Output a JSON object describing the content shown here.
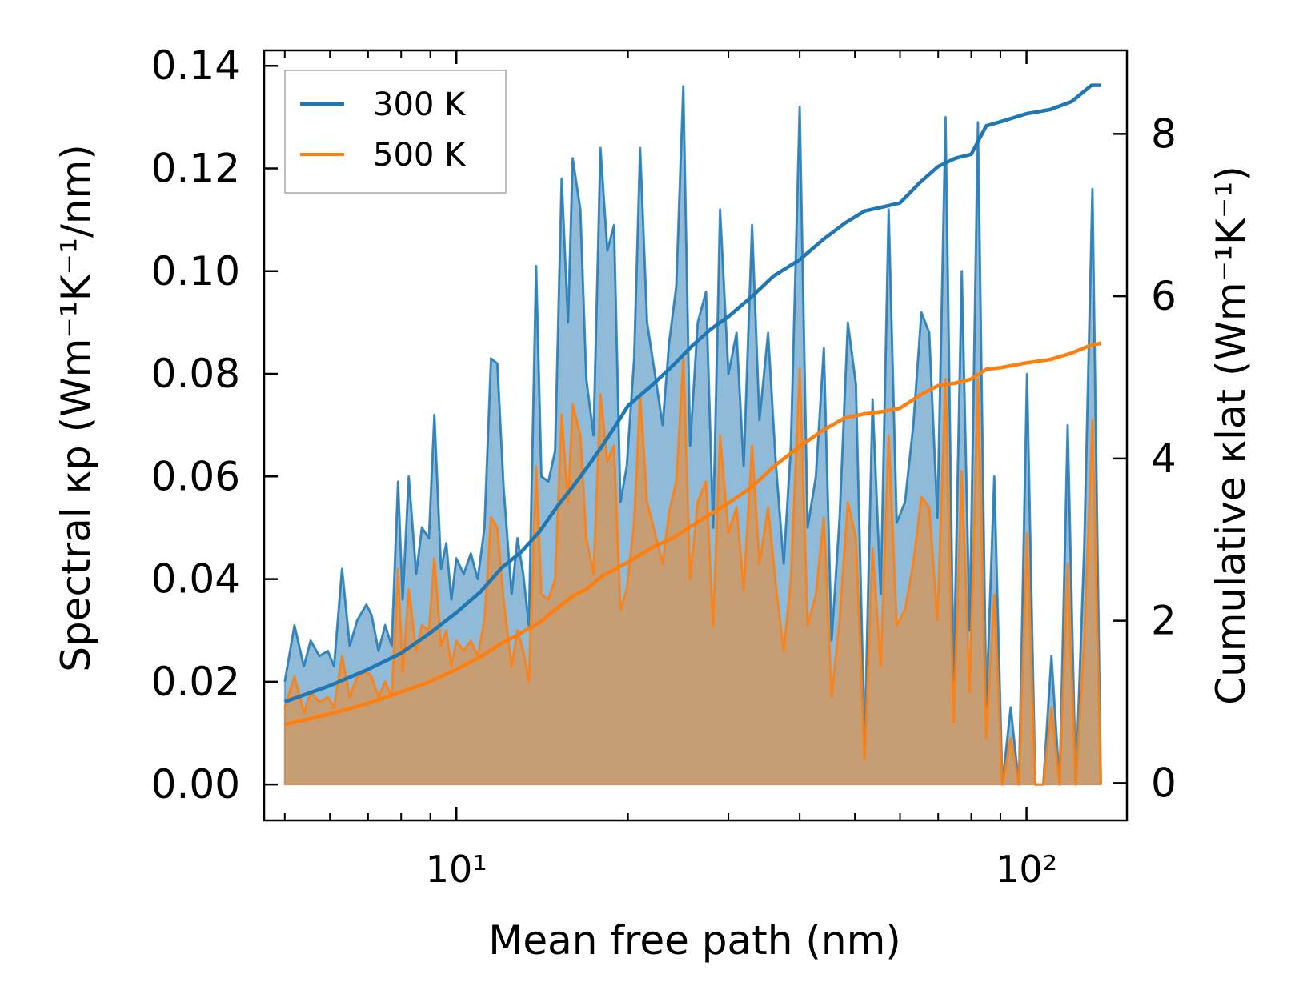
{
  "chart_data": {
    "type": "area",
    "xscale": "log",
    "xlabel": "Mean free path (nm)",
    "xlim": [
      4.6,
      150
    ],
    "ylabel_left": "Spectral κp (Wm⁻¹K⁻¹/nm)",
    "ylabel_right": "Cumulative κlat (Wm⁻¹K⁻¹)",
    "ylim_left": [
      -0.007,
      0.143
    ],
    "ylim_right": [
      -0.46,
      9.03
    ],
    "xticks": [
      {
        "value": 10,
        "label": "10¹"
      },
      {
        "value": 100,
        "label": "10²"
      }
    ],
    "yticks_left": [
      "0.00",
      "0.02",
      "0.04",
      "0.06",
      "0.08",
      "0.10",
      "0.12",
      "0.14"
    ],
    "yticks_right": [
      "0",
      "2",
      "4",
      "6",
      "8"
    ],
    "legend": {
      "placement": "top-left",
      "entries": [
        "300 K",
        "500 K"
      ]
    },
    "colors": {
      "300K": "#1f77b4",
      "500K": "#ff7f0e"
    },
    "spectral_300K": [
      [
        5.0,
        0.02
      ],
      [
        5.2,
        0.031
      ],
      [
        5.4,
        0.023
      ],
      [
        5.55,
        0.028
      ],
      [
        5.75,
        0.025
      ],
      [
        5.95,
        0.026
      ],
      [
        6.1,
        0.023
      ],
      [
        6.3,
        0.042
      ],
      [
        6.5,
        0.027
      ],
      [
        6.7,
        0.032
      ],
      [
        6.95,
        0.035
      ],
      [
        7.1,
        0.033
      ],
      [
        7.3,
        0.026
      ],
      [
        7.5,
        0.031
      ],
      [
        7.7,
        0.027
      ],
      [
        7.9,
        0.059
      ],
      [
        8.05,
        0.036
      ],
      [
        8.25,
        0.06
      ],
      [
        8.5,
        0.041
      ],
      [
        8.7,
        0.05
      ],
      [
        8.95,
        0.048
      ],
      [
        9.15,
        0.072
      ],
      [
        9.4,
        0.042
      ],
      [
        9.6,
        0.047
      ],
      [
        9.8,
        0.036
      ],
      [
        10.0,
        0.044
      ],
      [
        10.3,
        0.041
      ],
      [
        10.6,
        0.045
      ],
      [
        10.9,
        0.04
      ],
      [
        11.2,
        0.05
      ],
      [
        11.5,
        0.083
      ],
      [
        11.8,
        0.082
      ],
      [
        12.1,
        0.058
      ],
      [
        12.5,
        0.037
      ],
      [
        12.8,
        0.048
      ],
      [
        13.1,
        0.041
      ],
      [
        13.4,
        0.031
      ],
      [
        13.8,
        0.101
      ],
      [
        14.1,
        0.06
      ],
      [
        14.5,
        0.059
      ],
      [
        14.9,
        0.065
      ],
      [
        15.3,
        0.118
      ],
      [
        15.7,
        0.09
      ],
      [
        16.0,
        0.122
      ],
      [
        16.5,
        0.112
      ],
      [
        16.9,
        0.079
      ],
      [
        17.4,
        0.068
      ],
      [
        17.9,
        0.124
      ],
      [
        18.4,
        0.104
      ],
      [
        18.9,
        0.109
      ],
      [
        19.4,
        0.055
      ],
      [
        19.9,
        0.062
      ],
      [
        20.5,
        0.083
      ],
      [
        21.0,
        0.124
      ],
      [
        21.6,
        0.09
      ],
      [
        22.3,
        0.08
      ],
      [
        23.0,
        0.07
      ],
      [
        23.6,
        0.086
      ],
      [
        24.3,
        0.097
      ],
      [
        25.0,
        0.136
      ],
      [
        25.7,
        0.066
      ],
      [
        26.5,
        0.09
      ],
      [
        27.4,
        0.096
      ],
      [
        28.2,
        0.05
      ],
      [
        29.0,
        0.112
      ],
      [
        30.0,
        0.08
      ],
      [
        31.0,
        0.088
      ],
      [
        31.9,
        0.062
      ],
      [
        33.0,
        0.109
      ],
      [
        34.0,
        0.071
      ],
      [
        35.2,
        0.088
      ],
      [
        36.3,
        0.063
      ],
      [
        37.5,
        0.043
      ],
      [
        38.6,
        0.066
      ],
      [
        40.0,
        0.132
      ],
      [
        41.3,
        0.05
      ],
      [
        42.7,
        0.06
      ],
      [
        44.1,
        0.085
      ],
      [
        45.5,
        0.028
      ],
      [
        47.0,
        0.052
      ],
      [
        48.6,
        0.09
      ],
      [
        50.2,
        0.078
      ],
      [
        52.0,
        0.008
      ],
      [
        53.7,
        0.075
      ],
      [
        55.5,
        0.037
      ],
      [
        57.3,
        0.112
      ],
      [
        59.2,
        0.051
      ],
      [
        61.2,
        0.055
      ],
      [
        63.3,
        0.07
      ],
      [
        65.4,
        0.092
      ],
      [
        67.5,
        0.088
      ],
      [
        69.8,
        0.052
      ],
      [
        72.1,
        0.13
      ],
      [
        74.5,
        0.02
      ],
      [
        77.0,
        0.1
      ],
      [
        79.5,
        0.03
      ],
      [
        82.2,
        0.129
      ],
      [
        85.0,
        0.015
      ],
      [
        87.8,
        0.06
      ],
      [
        90.7,
        0.0
      ],
      [
        93.8,
        0.015
      ],
      [
        97.0,
        0.0
      ],
      [
        100.2,
        0.08
      ],
      [
        103.6,
        0.0
      ],
      [
        107.0,
        0.0
      ],
      [
        110.6,
        0.025
      ],
      [
        114.3,
        0.0
      ],
      [
        118.1,
        0.07
      ],
      [
        122.0,
        0.0
      ],
      [
        126.2,
        0.046
      ],
      [
        130.5,
        0.116
      ],
      [
        135.0,
        0.0
      ]
    ],
    "spectral_500K": [
      [
        5.0,
        0.015
      ],
      [
        5.2,
        0.021
      ],
      [
        5.4,
        0.014
      ],
      [
        5.55,
        0.018
      ],
      [
        5.75,
        0.016
      ],
      [
        5.95,
        0.017
      ],
      [
        6.1,
        0.015
      ],
      [
        6.3,
        0.025
      ],
      [
        6.5,
        0.017
      ],
      [
        6.7,
        0.021
      ],
      [
        6.95,
        0.022
      ],
      [
        7.1,
        0.021
      ],
      [
        7.3,
        0.017
      ],
      [
        7.5,
        0.02
      ],
      [
        7.7,
        0.017
      ],
      [
        7.9,
        0.042
      ],
      [
        8.05,
        0.022
      ],
      [
        8.25,
        0.038
      ],
      [
        8.5,
        0.026
      ],
      [
        8.7,
        0.031
      ],
      [
        8.95,
        0.03
      ],
      [
        9.15,
        0.044
      ],
      [
        9.4,
        0.027
      ],
      [
        9.6,
        0.03
      ],
      [
        9.8,
        0.023
      ],
      [
        10.0,
        0.028
      ],
      [
        10.3,
        0.026
      ],
      [
        10.6,
        0.028
      ],
      [
        10.9,
        0.025
      ],
      [
        11.2,
        0.032
      ],
      [
        11.5,
        0.052
      ],
      [
        11.8,
        0.05
      ],
      [
        12.1,
        0.036
      ],
      [
        12.5,
        0.023
      ],
      [
        12.8,
        0.03
      ],
      [
        13.1,
        0.026
      ],
      [
        13.4,
        0.02
      ],
      [
        13.8,
        0.062
      ],
      [
        14.1,
        0.037
      ],
      [
        14.5,
        0.036
      ],
      [
        14.9,
        0.04
      ],
      [
        15.3,
        0.072
      ],
      [
        15.7,
        0.055
      ],
      [
        16.0,
        0.074
      ],
      [
        16.5,
        0.068
      ],
      [
        16.9,
        0.048
      ],
      [
        17.4,
        0.041
      ],
      [
        17.9,
        0.076
      ],
      [
        18.4,
        0.063
      ],
      [
        18.9,
        0.066
      ],
      [
        19.4,
        0.034
      ],
      [
        19.9,
        0.038
      ],
      [
        20.5,
        0.051
      ],
      [
        21.0,
        0.076
      ],
      [
        21.6,
        0.055
      ],
      [
        22.3,
        0.049
      ],
      [
        23.0,
        0.043
      ],
      [
        23.6,
        0.053
      ],
      [
        24.3,
        0.059
      ],
      [
        25.0,
        0.083
      ],
      [
        25.7,
        0.04
      ],
      [
        26.5,
        0.055
      ],
      [
        27.4,
        0.059
      ],
      [
        28.2,
        0.031
      ],
      [
        29.0,
        0.068
      ],
      [
        30.0,
        0.049
      ],
      [
        31.0,
        0.054
      ],
      [
        31.9,
        0.038
      ],
      [
        33.0,
        0.066
      ],
      [
        34.0,
        0.043
      ],
      [
        35.2,
        0.054
      ],
      [
        36.3,
        0.039
      ],
      [
        37.5,
        0.026
      ],
      [
        38.6,
        0.04
      ],
      [
        40.0,
        0.081
      ],
      [
        41.3,
        0.031
      ],
      [
        42.7,
        0.037
      ],
      [
        44.1,
        0.052
      ],
      [
        45.5,
        0.017
      ],
      [
        47.0,
        0.032
      ],
      [
        48.6,
        0.055
      ],
      [
        50.2,
        0.048
      ],
      [
        52.0,
        0.005
      ],
      [
        53.7,
        0.046
      ],
      [
        55.5,
        0.023
      ],
      [
        57.3,
        0.068
      ],
      [
        59.2,
        0.031
      ],
      [
        61.2,
        0.034
      ],
      [
        63.3,
        0.043
      ],
      [
        65.4,
        0.056
      ],
      [
        67.5,
        0.054
      ],
      [
        69.8,
        0.032
      ],
      [
        72.1,
        0.079
      ],
      [
        74.5,
        0.012
      ],
      [
        77.0,
        0.061
      ],
      [
        79.5,
        0.018
      ],
      [
        82.2,
        0.079
      ],
      [
        85.0,
        0.009
      ],
      [
        87.8,
        0.037
      ],
      [
        90.7,
        0.0
      ],
      [
        93.8,
        0.009
      ],
      [
        97.0,
        0.0
      ],
      [
        100.2,
        0.049
      ],
      [
        103.6,
        0.0
      ],
      [
        107.0,
        0.0
      ],
      [
        110.6,
        0.015
      ],
      [
        114.3,
        0.0
      ],
      [
        118.1,
        0.043
      ],
      [
        122.0,
        0.0
      ],
      [
        126.2,
        0.028
      ],
      [
        130.5,
        0.071
      ],
      [
        135.0,
        0.0
      ]
    ],
    "cumulative_300K": [
      [
        5.0,
        1.0
      ],
      [
        6.0,
        1.2
      ],
      [
        7.0,
        1.4
      ],
      [
        8.0,
        1.6
      ],
      [
        9.0,
        1.85
      ],
      [
        10.0,
        2.1
      ],
      [
        11.0,
        2.35
      ],
      [
        12.0,
        2.65
      ],
      [
        13.0,
        2.85
      ],
      [
        14.0,
        3.1
      ],
      [
        15.0,
        3.4
      ],
      [
        16.0,
        3.65
      ],
      [
        17.0,
        3.9
      ],
      [
        18.0,
        4.15
      ],
      [
        19.0,
        4.4
      ],
      [
        20.0,
        4.65
      ],
      [
        22.0,
        4.9
      ],
      [
        24.0,
        5.15
      ],
      [
        26.0,
        5.4
      ],
      [
        28.0,
        5.6
      ],
      [
        30.0,
        5.75
      ],
      [
        33.0,
        6.0
      ],
      [
        36.0,
        6.25
      ],
      [
        40.0,
        6.45
      ],
      [
        44.0,
        6.7
      ],
      [
        48.0,
        6.9
      ],
      [
        52.0,
        7.05
      ],
      [
        56.0,
        7.1
      ],
      [
        60.0,
        7.15
      ],
      [
        65.0,
        7.4
      ],
      [
        70.0,
        7.6
      ],
      [
        75.0,
        7.7
      ],
      [
        80.0,
        7.75
      ],
      [
        85.0,
        8.1
      ],
      [
        90.0,
        8.15
      ],
      [
        100.0,
        8.25
      ],
      [
        110.0,
        8.3
      ],
      [
        120.0,
        8.4
      ],
      [
        130.0,
        8.6
      ],
      [
        135.0,
        8.6
      ]
    ],
    "cumulative_500K": [
      [
        5.0,
        0.72
      ],
      [
        6.0,
        0.85
      ],
      [
        7.0,
        0.98
      ],
      [
        8.0,
        1.12
      ],
      [
        9.0,
        1.25
      ],
      [
        10.0,
        1.4
      ],
      [
        11.0,
        1.55
      ],
      [
        12.0,
        1.72
      ],
      [
        13.0,
        1.85
      ],
      [
        14.0,
        1.98
      ],
      [
        15.0,
        2.15
      ],
      [
        16.0,
        2.3
      ],
      [
        17.0,
        2.4
      ],
      [
        18.0,
        2.55
      ],
      [
        20.0,
        2.72
      ],
      [
        22.0,
        2.9
      ],
      [
        24.0,
        3.02
      ],
      [
        26.0,
        3.18
      ],
      [
        28.0,
        3.32
      ],
      [
        30.0,
        3.45
      ],
      [
        33.0,
        3.65
      ],
      [
        36.0,
        3.9
      ],
      [
        40.0,
        4.15
      ],
      [
        44.0,
        4.35
      ],
      [
        48.0,
        4.5
      ],
      [
        52.0,
        4.55
      ],
      [
        56.0,
        4.58
      ],
      [
        60.0,
        4.62
      ],
      [
        65.0,
        4.78
      ],
      [
        70.0,
        4.9
      ],
      [
        75.0,
        4.93
      ],
      [
        80.0,
        4.98
      ],
      [
        85.0,
        5.1
      ],
      [
        90.0,
        5.12
      ],
      [
        100.0,
        5.18
      ],
      [
        110.0,
        5.22
      ],
      [
        120.0,
        5.3
      ],
      [
        130.0,
        5.4
      ],
      [
        135.0,
        5.42
      ]
    ]
  }
}
